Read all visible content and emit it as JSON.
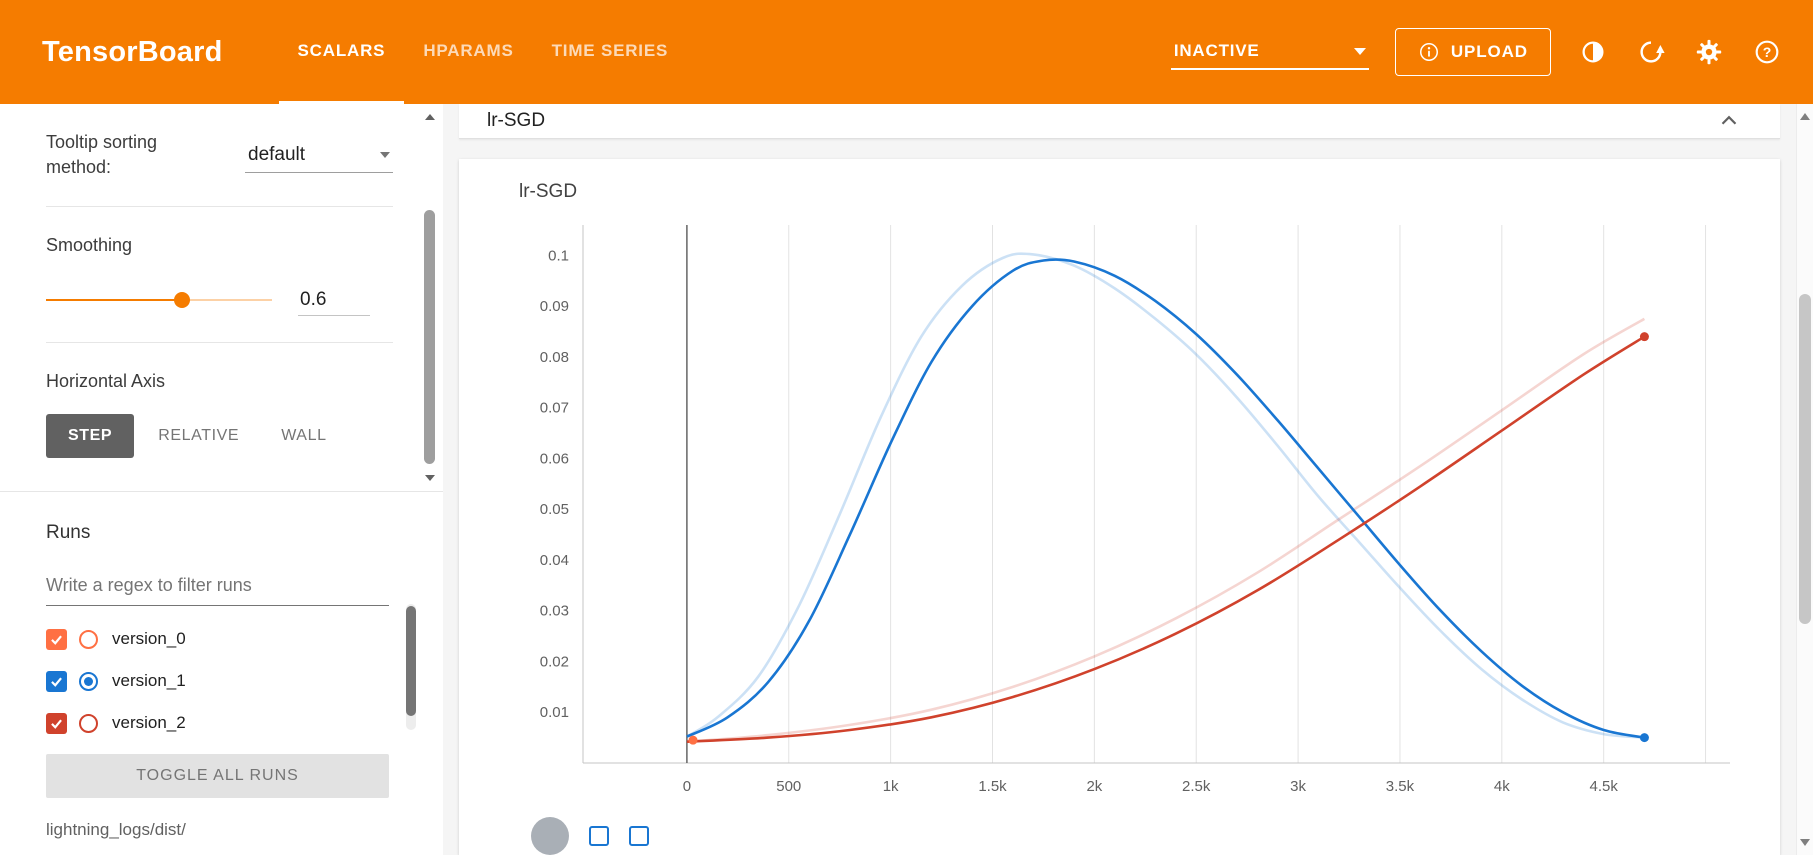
{
  "header": {
    "title": "TensorBoard",
    "tabs": [
      {
        "label": "SCALARS"
      },
      {
        "label": "HPARAMS"
      },
      {
        "label": "TIME SERIES"
      }
    ],
    "active_tab": "SCALARS",
    "status_dropdown": {
      "value": "INACTIVE"
    },
    "upload": {
      "label": "UPLOAD"
    },
    "icon_names": [
      "info-icon",
      "brightness-icon",
      "refresh-icon",
      "settings-icon",
      "help-icon"
    ],
    "bg_color": "#f57c00"
  },
  "sidebar": {
    "tooltip_sorting": {
      "label": "Tooltip sorting method:",
      "value": "default"
    },
    "smoothing": {
      "label": "Smoothing",
      "value": "0.6"
    },
    "horizontal_axis": {
      "label": "Horizontal Axis",
      "options": [
        {
          "label": "STEP"
        },
        {
          "label": "RELATIVE"
        },
        {
          "label": "WALL"
        }
      ],
      "selected": "STEP"
    },
    "runs": {
      "label": "Runs",
      "filter_placeholder": "Write a regex to filter runs",
      "items": [
        {
          "name": "version_0",
          "color": "#ff7043",
          "checked": true,
          "radio_selected": false
        },
        {
          "name": "version_1",
          "color": "#1976d2",
          "checked": true,
          "radio_selected": true
        },
        {
          "name": "version_2",
          "color": "#d0422c",
          "checked": true,
          "radio_selected": false
        }
      ],
      "toggle_all_label": "TOGGLE ALL RUNS",
      "logdir": "lightning_logs/dist/"
    }
  },
  "main": {
    "group_title": "lr-SGD",
    "chart_title": "lr-SGD",
    "toolbar_icon_names": [
      "run-selector-button",
      "checkbox-icon",
      "checkbox-icon"
    ]
  },
  "chart_data": {
    "type": "line",
    "title": "lr-SGD",
    "xlabel": "",
    "ylabel": "",
    "xlim": [
      -510,
      5120
    ],
    "ylim": [
      0,
      0.106
    ],
    "x_ticks": [
      0,
      500,
      1000,
      1500,
      2000,
      2500,
      3000,
      3500,
      4000,
      4500
    ],
    "x_tick_labels": [
      "0",
      "500",
      "1k",
      "1.5k",
      "2k",
      "2.5k",
      "3k",
      "3.5k",
      "4k",
      "4.5k"
    ],
    "x_gridlines": [
      0,
      500,
      1000,
      1500,
      2000,
      2500,
      3000,
      3500,
      4000,
      4500,
      5000
    ],
    "y_ticks": [
      0.01,
      0.02,
      0.03,
      0.04,
      0.05,
      0.06,
      0.07,
      0.08,
      0.09,
      0.1
    ],
    "y_tick_labels": [
      "0.01",
      "0.02",
      "0.03",
      "0.04",
      "0.05",
      "0.06",
      "0.07",
      "0.08",
      "0.09",
      "0.1"
    ],
    "smoothing_applied": 0.6,
    "legend_position": "none",
    "grid": "vertical-only",
    "series": [
      {
        "name": "version_0",
        "color": "#ff7043",
        "smoothed": [
          [
            30,
            0.0045
          ]
        ]
      },
      {
        "name": "version_1",
        "color": "#1976d2",
        "smoothed": [
          [
            0,
            0.0052
          ],
          [
            200,
            0.009
          ],
          [
            400,
            0.016
          ],
          [
            600,
            0.028
          ],
          [
            800,
            0.045
          ],
          [
            1000,
            0.063
          ],
          [
            1200,
            0.079
          ],
          [
            1400,
            0.09
          ],
          [
            1600,
            0.097
          ],
          [
            1750,
            0.099
          ],
          [
            1900,
            0.0988
          ],
          [
            2100,
            0.096
          ],
          [
            2300,
            0.091
          ],
          [
            2500,
            0.0845
          ],
          [
            2700,
            0.0765
          ],
          [
            2900,
            0.0675
          ],
          [
            3100,
            0.058
          ],
          [
            3300,
            0.0485
          ],
          [
            3500,
            0.039
          ],
          [
            3700,
            0.03
          ],
          [
            3900,
            0.022
          ],
          [
            4100,
            0.0152
          ],
          [
            4300,
            0.01
          ],
          [
            4500,
            0.0065
          ],
          [
            4700,
            0.005
          ]
        ],
        "raw": [
          [
            0,
            0.0052
          ],
          [
            150,
            0.009
          ],
          [
            350,
            0.017
          ],
          [
            550,
            0.031
          ],
          [
            750,
            0.049
          ],
          [
            950,
            0.068
          ],
          [
            1150,
            0.084
          ],
          [
            1350,
            0.094
          ],
          [
            1550,
            0.0995
          ],
          [
            1700,
            0.1002
          ],
          [
            1900,
            0.098
          ],
          [
            2100,
            0.0935
          ],
          [
            2300,
            0.0875
          ],
          [
            2500,
            0.0805
          ],
          [
            2700,
            0.072
          ],
          [
            2900,
            0.0625
          ],
          [
            3100,
            0.0525
          ],
          [
            3300,
            0.0435
          ],
          [
            3500,
            0.0345
          ],
          [
            3700,
            0.026
          ],
          [
            3900,
            0.0185
          ],
          [
            4100,
            0.0125
          ],
          [
            4300,
            0.008
          ],
          [
            4500,
            0.0057
          ],
          [
            4700,
            0.005
          ]
        ]
      },
      {
        "name": "version_2",
        "color": "#d0422c",
        "smoothed": [
          [
            0,
            0.0042
          ],
          [
            400,
            0.005
          ],
          [
            800,
            0.0065
          ],
          [
            1200,
            0.009
          ],
          [
            1600,
            0.013
          ],
          [
            2000,
            0.0185
          ],
          [
            2400,
            0.0255
          ],
          [
            2800,
            0.034
          ],
          [
            3200,
            0.044
          ],
          [
            3600,
            0.0545
          ],
          [
            4000,
            0.0655
          ],
          [
            4400,
            0.0765
          ],
          [
            4700,
            0.084
          ]
        ],
        "raw": [
          [
            0,
            0.0042
          ],
          [
            400,
            0.0055
          ],
          [
            800,
            0.0075
          ],
          [
            1200,
            0.0105
          ],
          [
            1600,
            0.015
          ],
          [
            2000,
            0.021
          ],
          [
            2400,
            0.0285
          ],
          [
            2800,
            0.0375
          ],
          [
            3200,
            0.048
          ],
          [
            3600,
            0.0585
          ],
          [
            4000,
            0.0695
          ],
          [
            4400,
            0.0805
          ],
          [
            4700,
            0.0875
          ]
        ]
      }
    ]
  }
}
